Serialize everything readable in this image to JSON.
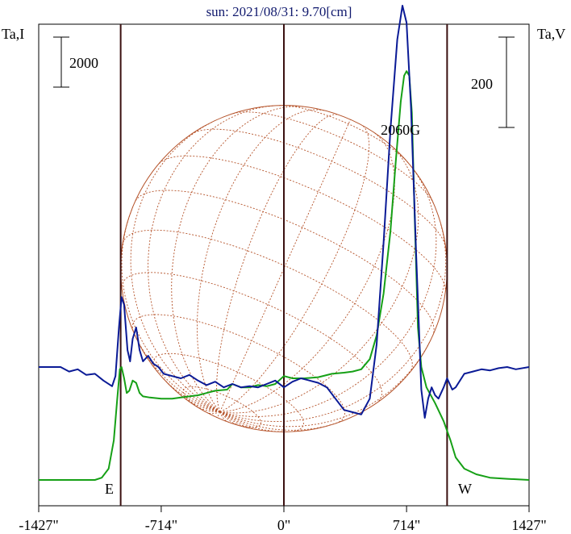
{
  "chart_data": {
    "type": "line",
    "title": "sun: 2021/08/31: 9.70[cm]",
    "left_axis_label": "Ta,I",
    "right_axis_label": "Ta,V",
    "left_scale_bar": "2000",
    "right_scale_bar": "200",
    "xlim": [
      -1427,
      1427
    ],
    "x_ticks": [
      {
        "value": -1427,
        "label": "-1427\""
      },
      {
        "value": -714,
        "label": "-714\""
      },
      {
        "value": 0,
        "label": "0\""
      },
      {
        "value": 714,
        "label": "714\""
      },
      {
        "value": 1427,
        "label": "1427\""
      }
    ],
    "vertical_lines": [
      -950,
      0,
      950
    ],
    "limb_labels": {
      "east": "E",
      "west": "W"
    },
    "annotation": {
      "text": "2060G",
      "x": 714
    },
    "solar_disk_radius_arcsec": 950,
    "series": [
      {
        "name": "Ta,I",
        "color": "#16a016",
        "points": [
          [
            -1427,
            0.0
          ],
          [
            -1100,
            0.0
          ],
          [
            -1060,
            0.02
          ],
          [
            -1020,
            0.1
          ],
          [
            -990,
            0.35
          ],
          [
            -970,
            0.72
          ],
          [
            -955,
            0.98
          ],
          [
            -945,
            1.0
          ],
          [
            -930,
            0.9
          ],
          [
            -915,
            0.77
          ],
          [
            -900,
            0.79
          ],
          [
            -880,
            0.88
          ],
          [
            -860,
            0.86
          ],
          [
            -840,
            0.77
          ],
          [
            -820,
            0.74
          ],
          [
            -780,
            0.73
          ],
          [
            -714,
            0.72
          ],
          [
            -650,
            0.72
          ],
          [
            -600,
            0.73
          ],
          [
            -550,
            0.74
          ],
          [
            -500,
            0.75
          ],
          [
            -450,
            0.77
          ],
          [
            -400,
            0.79
          ],
          [
            -330,
            0.8
          ],
          [
            -300,
            0.85
          ],
          [
            -250,
            0.82
          ],
          [
            -200,
            0.82
          ],
          [
            -150,
            0.84
          ],
          [
            -100,
            0.83
          ],
          [
            -50,
            0.85
          ],
          [
            0,
            0.92
          ],
          [
            50,
            0.9
          ],
          [
            120,
            0.9
          ],
          [
            200,
            0.91
          ],
          [
            280,
            0.94
          ],
          [
            350,
            0.95
          ],
          [
            400,
            0.96
          ],
          [
            450,
            0.98
          ],
          [
            500,
            1.07
          ],
          [
            540,
            1.28
          ],
          [
            580,
            1.65
          ],
          [
            620,
            2.2
          ],
          [
            650,
            2.8
          ],
          [
            680,
            3.35
          ],
          [
            700,
            3.58
          ],
          [
            714,
            3.62
          ],
          [
            730,
            3.58
          ],
          [
            745,
            3.25
          ],
          [
            760,
            2.4
          ],
          [
            780,
            1.35
          ],
          [
            800,
            1.0
          ],
          [
            830,
            0.82
          ],
          [
            880,
            0.68
          ],
          [
            930,
            0.52
          ],
          [
            970,
            0.35
          ],
          [
            1000,
            0.2
          ],
          [
            1050,
            0.1
          ],
          [
            1120,
            0.05
          ],
          [
            1200,
            0.02
          ],
          [
            1300,
            0.01
          ],
          [
            1427,
            0.0
          ]
        ]
      },
      {
        "name": "Ta,V",
        "color": "#0a1a96",
        "points": [
          [
            -1427,
            1.0
          ],
          [
            -1300,
            1.0
          ],
          [
            -1250,
            0.96
          ],
          [
            -1200,
            0.98
          ],
          [
            -1150,
            0.93
          ],
          [
            -1100,
            0.94
          ],
          [
            -1050,
            0.88
          ],
          [
            -1000,
            0.83
          ],
          [
            -980,
            0.92
          ],
          [
            -960,
            1.35
          ],
          [
            -945,
            1.62
          ],
          [
            -930,
            1.55
          ],
          [
            -910,
            1.15
          ],
          [
            -895,
            1.05
          ],
          [
            -880,
            1.25
          ],
          [
            -860,
            1.35
          ],
          [
            -840,
            1.15
          ],
          [
            -820,
            1.05
          ],
          [
            -790,
            1.1
          ],
          [
            -760,
            1.03
          ],
          [
            -730,
            1.0
          ],
          [
            -700,
            0.94
          ],
          [
            -650,
            0.92
          ],
          [
            -600,
            0.9
          ],
          [
            -550,
            0.93
          ],
          [
            -500,
            0.88
          ],
          [
            -450,
            0.84
          ],
          [
            -400,
            0.87
          ],
          [
            -350,
            0.82
          ],
          [
            -300,
            0.85
          ],
          [
            -250,
            0.82
          ],
          [
            -200,
            0.83
          ],
          [
            -150,
            0.82
          ],
          [
            -100,
            0.85
          ],
          [
            -50,
            0.88
          ],
          [
            0,
            0.82
          ],
          [
            50,
            0.87
          ],
          [
            100,
            0.9
          ],
          [
            150,
            0.88
          ],
          [
            200,
            0.86
          ],
          [
            250,
            0.82
          ],
          [
            300,
            0.72
          ],
          [
            350,
            0.62
          ],
          [
            400,
            0.6
          ],
          [
            450,
            0.58
          ],
          [
            500,
            0.72
          ],
          [
            540,
            1.2
          ],
          [
            580,
            2.1
          ],
          [
            620,
            3.1
          ],
          [
            660,
            3.9
          ],
          [
            690,
            4.2
          ],
          [
            714,
            4.05
          ],
          [
            740,
            3.3
          ],
          [
            770,
            2.0
          ],
          [
            800,
            0.8
          ],
          [
            820,
            0.55
          ],
          [
            840,
            0.72
          ],
          [
            860,
            0.82
          ],
          [
            880,
            0.75
          ],
          [
            900,
            0.72
          ],
          [
            930,
            0.82
          ],
          [
            950,
            0.9
          ],
          [
            980,
            0.8
          ],
          [
            1000,
            0.82
          ],
          [
            1050,
            0.94
          ],
          [
            1100,
            0.96
          ],
          [
            1150,
            0.98
          ],
          [
            1200,
            0.97
          ],
          [
            1250,
            0.99
          ],
          [
            1300,
            1.0
          ],
          [
            1350,
            0.98
          ],
          [
            1427,
            1.0
          ]
        ]
      }
    ],
    "grid": false,
    "legend": "none"
  }
}
